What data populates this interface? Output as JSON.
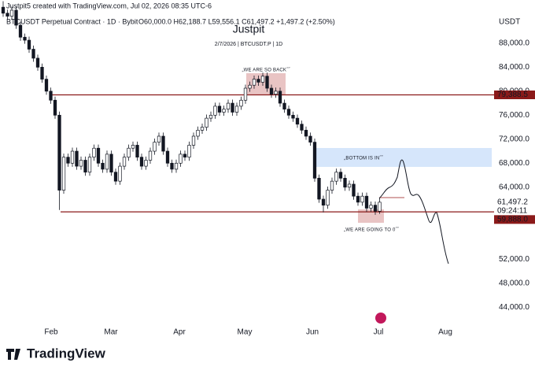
{
  "header": {
    "attribution": "Justpit5 created with TradingView.com, Jul 02, 2026 08:35 UTC-6",
    "symbol_line": "BTCUSDT Perpetual Contract · 1D · Bybit",
    "ohlc": "O60,000.0  H62,188.7  L59,556.1  C61,497.2  +1,497.2 (+2.50%)"
  },
  "chart_data": {
    "type": "candlestick",
    "title": "Justpit",
    "subtitle": "2/7/2026 | BTCUSDT.P | 1D",
    "currency": "USDT",
    "x_labels": [
      "Feb",
      "Mar",
      "Apr",
      "May",
      "Jun",
      "Jul",
      "Aug"
    ],
    "open": [
      94000,
      93000,
      92500,
      93500,
      91000,
      89000,
      88500,
      87000,
      85500,
      84000,
      82000,
      80000,
      78500,
      76000,
      63500,
      69000,
      68000,
      70000,
      67500,
      68500,
      66500,
      69000,
      70500,
      68000,
      67000,
      69500,
      66500,
      65000,
      67500,
      69000,
      70500,
      71000,
      69000,
      67500,
      68500,
      70000,
      71500,
      72500,
      70000,
      68000,
      67000,
      68000,
      69500,
      69000,
      71000,
      72500,
      73500,
      74000,
      75500,
      76000,
      77500,
      76500,
      77000,
      78000,
      76500,
      77500,
      78500,
      80500,
      81000,
      82000,
      81500,
      82500,
      80500,
      79500,
      80000,
      78000,
      77000,
      76000,
      75500,
      74500,
      73500,
      72500,
      71500,
      65500,
      62000,
      61000,
      63500,
      65000,
      66500,
      65500,
      64000,
      64500,
      62500,
      61500,
      62500,
      60500,
      61000,
      60000
    ],
    "high": [
      95000,
      93600,
      94100,
      94100,
      91600,
      89600,
      89100,
      87600,
      86100,
      84600,
      82600,
      80600,
      79100,
      76600,
      69600,
      69600,
      70600,
      70600,
      69100,
      69100,
      69600,
      71100,
      71100,
      68600,
      70100,
      70100,
      67100,
      68100,
      69600,
      71100,
      71600,
      71600,
      69600,
      69100,
      70600,
      72100,
      73100,
      73100,
      70600,
      68600,
      68600,
      70100,
      70100,
      71600,
      73100,
      74100,
      74600,
      76100,
      76600,
      78100,
      78100,
      77600,
      78600,
      78600,
      78100,
      79100,
      81100,
      81600,
      82600,
      82600,
      83100,
      83100,
      81100,
      80600,
      80600,
      78600,
      77600,
      76600,
      76100,
      75100,
      74100,
      73100,
      72100,
      66100,
      62600,
      64100,
      65600,
      67100,
      67100,
      66100,
      65100,
      65100,
      63100,
      63100,
      63100,
      61600,
      61600,
      62188.7
    ],
    "low": [
      92400,
      91900,
      91900,
      90400,
      88400,
      87900,
      86400,
      84900,
      83400,
      81400,
      79400,
      77900,
      75400,
      60200,
      62900,
      67400,
      67400,
      66900,
      66900,
      65900,
      65900,
      68400,
      67400,
      66400,
      66400,
      65900,
      64400,
      64400,
      66900,
      68400,
      69900,
      68400,
      66900,
      66900,
      67900,
      69400,
      70900,
      69400,
      67400,
      66400,
      66400,
      67400,
      68400,
      68400,
      70400,
      71900,
      72900,
      73400,
      74900,
      75400,
      75900,
      75900,
      76400,
      75900,
      75900,
      76900,
      77900,
      79900,
      80400,
      80900,
      80900,
      79900,
      78900,
      78900,
      77400,
      76400,
      75400,
      74900,
      73900,
      72900,
      71900,
      70900,
      64900,
      61400,
      59800,
      60400,
      62900,
      64400,
      64900,
      63400,
      63400,
      61900,
      60900,
      60900,
      59900,
      59900,
      59400,
      59556.1
    ],
    "close": [
      93000,
      92500,
      93500,
      91000,
      89000,
      88500,
      87000,
      85500,
      84000,
      82000,
      80000,
      78500,
      76000,
      63500,
      69000,
      68000,
      70000,
      67500,
      68500,
      66500,
      69000,
      70500,
      68000,
      67000,
      69500,
      66500,
      65000,
      67500,
      69000,
      70500,
      71000,
      69000,
      67500,
      68500,
      70000,
      71500,
      72500,
      70000,
      68000,
      67000,
      68000,
      69500,
      69000,
      71000,
      72500,
      73500,
      74000,
      75500,
      76000,
      77500,
      76500,
      77000,
      78000,
      76500,
      77500,
      78500,
      80500,
      81000,
      82000,
      81500,
      82500,
      80500,
      79500,
      80000,
      78000,
      77000,
      76000,
      75500,
      74500,
      73500,
      72500,
      71500,
      65500,
      62000,
      61000,
      63500,
      65000,
      66500,
      65500,
      64000,
      64500,
      62500,
      61500,
      62500,
      60500,
      61000,
      60000,
      61497.2
    ],
    "up_color": "#ffffff",
    "down_color": "#131722",
    "ylim": [
      41400,
      95200
    ],
    "yticks": [
      {
        "value": 88000,
        "label": "88,000.0"
      },
      {
        "value": 84000,
        "label": "84,000.0"
      },
      {
        "value": 80000,
        "label": "80,000.0"
      },
      {
        "value": 76000,
        "label": "76,000.0"
      },
      {
        "value": 72000,
        "label": "72,000.0"
      },
      {
        "value": 68000,
        "label": "68,000.0"
      },
      {
        "value": 64000,
        "label": "64,000.0"
      },
      {
        "value": 52000,
        "label": "52,000.0"
      },
      {
        "value": 48000,
        "label": "48,000.0"
      },
      {
        "value": 44000,
        "label": "44,000.0"
      }
    ],
    "levels": [
      {
        "value": 79388.5,
        "label": "79,388.5",
        "color": "#8b1a1a"
      },
      {
        "value": 59888,
        "label": "59,888.0",
        "color": "#8b1a1a"
      }
    ],
    "last_price": {
      "value": 61497.2,
      "label": "61,497.2"
    },
    "countdown": "09:24:11",
    "annotations": [
      "„WE ARE SO BACK˝˝",
      "„BOTTOM IS IN˝˝",
      "„WE ARE GOING TO 0˝˝"
    ]
  },
  "footer": {
    "brand": "TradingView"
  }
}
